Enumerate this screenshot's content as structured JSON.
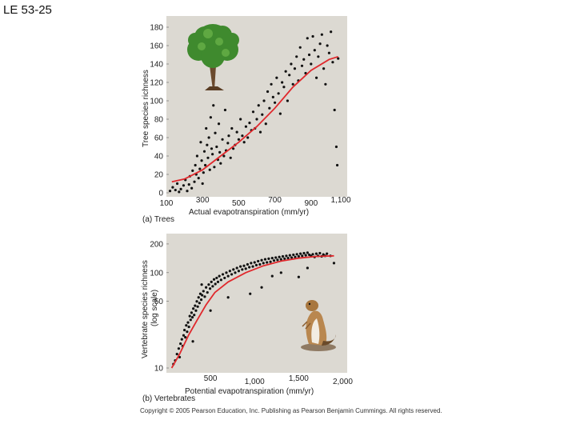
{
  "slide": {
    "label": "LE 53-25"
  },
  "copyright": "Copyright © 2005 Pearson Education, Inc. Publishing as Pearson Benjamin Cummings. All rights reserved.",
  "colors": {
    "panel_bg": "#dcd9d2",
    "points": "#111111",
    "fit_line": "#e0282c"
  },
  "chart_data": [
    {
      "type": "scatter",
      "panel_caption": "(a) Trees",
      "xlabel": "Actual evapotranspiration (mm/yr)",
      "ylabel": "Tree species richness",
      "xlim": [
        100,
        1100
      ],
      "ylim": [
        0,
        180
      ],
      "x_ticks": [
        "100",
        "300",
        "500",
        "700",
        "900",
        "1,100"
      ],
      "y_ticks": [
        "0",
        "20",
        "40",
        "60",
        "80",
        "100",
        "120",
        "140",
        "160",
        "180"
      ],
      "illustration": "tree-icon",
      "series": [
        {
          "kind": "points",
          "points": [
            [
              120,
              2
            ],
            [
              135,
              6
            ],
            [
              150,
              3
            ],
            [
              160,
              10
            ],
            [
              170,
              1
            ],
            [
              180,
              4
            ],
            [
              195,
              8
            ],
            [
              205,
              14
            ],
            [
              215,
              2
            ],
            [
              225,
              9
            ],
            [
              230,
              18
            ],
            [
              240,
              5
            ],
            [
              245,
              24
            ],
            [
              255,
              12
            ],
            [
              260,
              30
            ],
            [
              265,
              20
            ],
            [
              270,
              40
            ],
            [
              278,
              16
            ],
            [
              285,
              26
            ],
            [
              290,
              55
            ],
            [
              295,
              35
            ],
            [
              300,
              10
            ],
            [
              305,
              22
            ],
            [
              310,
              45
            ],
            [
              315,
              30
            ],
            [
              320,
              70
            ],
            [
              325,
              52
            ],
            [
              330,
              38
            ],
            [
              335,
              60
            ],
            [
              340,
              25
            ],
            [
              345,
              82
            ],
            [
              350,
              48
            ],
            [
              355,
              42
            ],
            [
              360,
              95
            ],
            [
              365,
              28
            ],
            [
              370,
              65
            ],
            [
              378,
              50
            ],
            [
              385,
              36
            ],
            [
              390,
              75
            ],
            [
              395,
              44
            ],
            [
              400,
              32
            ],
            [
              410,
              58
            ],
            [
              418,
              40
            ],
            [
              425,
              90
            ],
            [
              430,
              46
            ],
            [
              440,
              54
            ],
            [
              445,
              62
            ],
            [
              455,
              38
            ],
            [
              462,
              70
            ],
            [
              470,
              48
            ],
            [
              480,
              52
            ],
            [
              490,
              66
            ],
            [
              500,
              58
            ],
            [
              510,
              80
            ],
            [
              520,
              62
            ],
            [
              530,
              55
            ],
            [
              540,
              72
            ],
            [
              550,
              60
            ],
            [
              560,
              76
            ],
            [
              570,
              68
            ],
            [
              580,
              88
            ],
            [
              590,
              70
            ],
            [
              600,
              80
            ],
            [
              610,
              95
            ],
            [
              620,
              66
            ],
            [
              630,
              85
            ],
            [
              640,
              100
            ],
            [
              650,
              75
            ],
            [
              660,
              110
            ],
            [
              670,
              92
            ],
            [
              680,
              118
            ],
            [
              690,
              104
            ],
            [
              700,
              98
            ],
            [
              710,
              125
            ],
            [
              720,
              108
            ],
            [
              730,
              86
            ],
            [
              740,
              120
            ],
            [
              750,
              115
            ],
            [
              760,
              132
            ],
            [
              770,
              100
            ],
            [
              780,
              128
            ],
            [
              790,
              140
            ],
            [
              800,
              118
            ],
            [
              810,
              135
            ],
            [
              820,
              148
            ],
            [
              830,
              122
            ],
            [
              840,
              158
            ],
            [
              850,
              138
            ],
            [
              860,
              145
            ],
            [
              870,
              130
            ],
            [
              880,
              168
            ],
            [
              890,
              150
            ],
            [
              900,
              140
            ],
            [
              910,
              170
            ],
            [
              920,
              155
            ],
            [
              930,
              125
            ],
            [
              940,
              148
            ],
            [
              950,
              162
            ],
            [
              960,
              172
            ],
            [
              970,
              135
            ],
            [
              980,
              118
            ],
            [
              990,
              160
            ],
            [
              1000,
              152
            ],
            [
              1010,
              175
            ],
            [
              1020,
              142
            ],
            [
              1030,
              90
            ],
            [
              1040,
              50
            ],
            [
              1045,
              30
            ],
            [
              1050,
              146
            ]
          ]
        },
        {
          "kind": "fit",
          "points": [
            [
              130,
              12
            ],
            [
              200,
              15
            ],
            [
              300,
              25
            ],
            [
              400,
              40
            ],
            [
              500,
              55
            ],
            [
              600,
              72
            ],
            [
              700,
              92
            ],
            [
              800,
              115
            ],
            [
              900,
              133
            ],
            [
              1000,
              145
            ],
            [
              1050,
              148
            ]
          ]
        }
      ]
    },
    {
      "type": "scatter",
      "panel_caption": "(b) Vertebrates",
      "xlabel": "Potential evapotranspiration (mm/yr)",
      "ylabel": "Vertebrate species richness (log scale)",
      "ylabel_lines": [
        "Vertebrate species richness",
        "(log scale)"
      ],
      "xscale": "linear",
      "yscale": "log",
      "xlim": [
        0,
        2050
      ],
      "ylim": [
        10,
        220
      ],
      "x_ticks": [
        500,
        1000,
        1500,
        2000
      ],
      "x_tick_labels": [
        "500",
        "1,000",
        "1,500",
        "2,000"
      ],
      "y_ticks": [
        10,
        50,
        100,
        200
      ],
      "y_tick_labels": [
        "10",
        "50",
        "100",
        "200"
      ],
      "illustration": "prairie-dog-icon",
      "series": [
        {
          "kind": "points",
          "points": [
            [
              80,
              11
            ],
            [
              100,
              12
            ],
            [
              120,
              14
            ],
            [
              140,
              16
            ],
            [
              150,
              13
            ],
            [
              160,
              18
            ],
            [
              175,
              20
            ],
            [
              185,
              17
            ],
            [
              195,
              22
            ],
            [
              205,
              25
            ],
            [
              215,
              21
            ],
            [
              225,
              28
            ],
            [
              235,
              24
            ],
            [
              245,
              30
            ],
            [
              255,
              27
            ],
            [
              265,
              35
            ],
            [
              275,
              32
            ],
            [
              285,
              38
            ],
            [
              295,
              34
            ],
            [
              305,
              42
            ],
            [
              315,
              36
            ],
            [
              325,
              45
            ],
            [
              335,
              40
            ],
            [
              345,
              50
            ],
            [
              355,
              44
            ],
            [
              365,
              55
            ],
            [
              375,
              48
            ],
            [
              385,
              60
            ],
            [
              395,
              52
            ],
            [
              405,
              58
            ],
            [
              420,
              64
            ],
            [
              435,
              56
            ],
            [
              450,
              70
            ],
            [
              465,
              62
            ],
            [
              480,
              75
            ],
            [
              495,
              68
            ],
            [
              510,
              80
            ],
            [
              525,
              72
            ],
            [
              540,
              85
            ],
            [
              555,
              76
            ],
            [
              570,
              88
            ],
            [
              585,
              80
            ],
            [
              600,
              92
            ],
            [
              620,
              84
            ],
            [
              640,
              96
            ],
            [
              660,
              88
            ],
            [
              680,
              100
            ],
            [
              700,
              92
            ],
            [
              720,
              104
            ],
            [
              740,
              96
            ],
            [
              760,
              108
            ],
            [
              780,
              100
            ],
            [
              800,
              112
            ],
            [
              820,
              104
            ],
            [
              840,
              116
            ],
            [
              860,
              108
            ],
            [
              880,
              118
            ],
            [
              900,
              110
            ],
            [
              920,
              122
            ],
            [
              940,
              114
            ],
            [
              960,
              126
            ],
            [
              980,
              116
            ],
            [
              1000,
              128
            ],
            [
              1020,
              120
            ],
            [
              1040,
              132
            ],
            [
              1060,
              122
            ],
            [
              1080,
              135
            ],
            [
              1100,
              126
            ],
            [
              1120,
              138
            ],
            [
              1140,
              128
            ],
            [
              1160,
              140
            ],
            [
              1180,
              130
            ],
            [
              1200,
              142
            ],
            [
              1220,
              134
            ],
            [
              1240,
              144
            ],
            [
              1260,
              136
            ],
            [
              1280,
              146
            ],
            [
              1300,
              138
            ],
            [
              1320,
              148
            ],
            [
              1340,
              140
            ],
            [
              1360,
              150
            ],
            [
              1380,
              142
            ],
            [
              1400,
              152
            ],
            [
              1420,
              144
            ],
            [
              1440,
              154
            ],
            [
              1460,
              146
            ],
            [
              1480,
              156
            ],
            [
              1500,
              148
            ],
            [
              1520,
              158
            ],
            [
              1540,
              150
            ],
            [
              1560,
              160
            ],
            [
              1580,
              152
            ],
            [
              1600,
              162
            ],
            [
              1620,
              154
            ],
            [
              1640,
              150
            ],
            [
              1660,
              156
            ],
            [
              1680,
              146
            ],
            [
              1700,
              158
            ],
            [
              1720,
              150
            ],
            [
              1740,
              160
            ],
            [
              1760,
              148
            ],
            [
              1780,
              155
            ],
            [
              1800,
              150
            ],
            [
              1820,
              158
            ],
            [
              1860,
              150
            ],
            [
              1900,
              126
            ],
            [
              1080,
              70
            ],
            [
              1200,
              92
            ],
            [
              950,
              60
            ],
            [
              700,
              55
            ],
            [
              500,
              40
            ],
            [
              400,
              75
            ],
            [
              300,
              19
            ],
            [
              1300,
              100
            ],
            [
              1600,
              112
            ],
            [
              1500,
              90
            ]
          ]
        },
        {
          "kind": "fit",
          "points": [
            [
              60,
              10
            ],
            [
              150,
              14
            ],
            [
              250,
              22
            ],
            [
              350,
              32
            ],
            [
              450,
              46
            ],
            [
              550,
              62
            ],
            [
              700,
              80
            ],
            [
              900,
              100
            ],
            [
              1100,
              118
            ],
            [
              1300,
              132
            ],
            [
              1500,
              142
            ],
            [
              1700,
              148
            ],
            [
              1900,
              150
            ]
          ]
        }
      ]
    }
  ]
}
